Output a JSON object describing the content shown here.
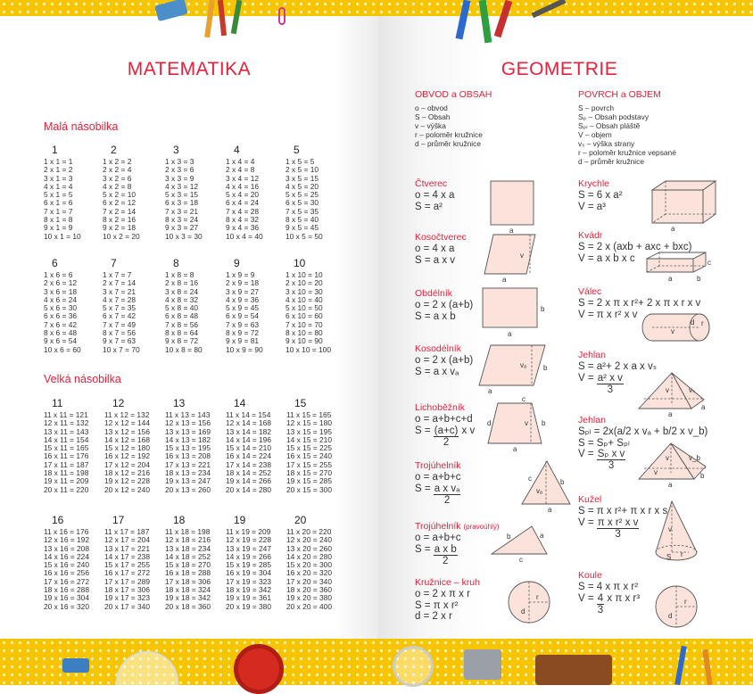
{
  "left": {
    "title": "MATEMATIKA",
    "small_title": "Malá násobilka",
    "big_title": "Velká násobilka",
    "small_tables": [
      {
        "header": "1",
        "rows": [
          "1 x 1 = 1",
          "2 x 1 = 2",
          "3 x 1 = 3",
          "4 x 1 = 4",
          "5 x 1 = 5",
          "6 x 1 = 6",
          "7 x 1 = 7",
          "8 x 1 = 8",
          "9 x 1 = 9",
          "10 x 1 = 10"
        ]
      },
      {
        "header": "2",
        "rows": [
          "1 x 2 = 2",
          "2 x 2 = 4",
          "3 x 2 = 6",
          "4 x 2 = 8",
          "5 x 2 = 10",
          "6 x 2 = 12",
          "7 x 2 = 14",
          "8 x 2 = 16",
          "9 x 2 = 18",
          "10 x 2 = 20"
        ]
      },
      {
        "header": "3",
        "rows": [
          "1 x 3 = 3",
          "2 x 3 = 6",
          "3 x 3 = 9",
          "4 x 3 = 12",
          "5 x 3 = 15",
          "6 x 3 = 18",
          "7 x 3 = 21",
          "8 x 3 = 24",
          "9 x 3 = 27",
          "10 x 3 = 30"
        ]
      },
      {
        "header": "4",
        "rows": [
          "1 x 4 = 4",
          "2 x 4 = 8",
          "3 x 4 = 12",
          "4 x 4 = 16",
          "5 x 4 = 20",
          "6 x 4 = 24",
          "7 x 4 = 28",
          "8 x 4 = 32",
          "9 x 4 = 36",
          "10 x 4 = 40"
        ]
      },
      {
        "header": "5",
        "rows": [
          "1 x 5 = 5",
          "2 x 5 = 10",
          "3 x 5 = 15",
          "4 x 5 = 20",
          "5 x 5 = 25",
          "6 x 5 = 30",
          "7 x 5 = 35",
          "8 x 5 = 40",
          "9 x 5 = 45",
          "10 x 5 = 50"
        ]
      },
      {
        "header": "6",
        "rows": [
          "1 x 6 = 6",
          "2 x 6 = 12",
          "3 x 6 = 18",
          "4 x 6 = 24",
          "5 x 6 = 30",
          "6 x 6 = 36",
          "7 x 6 = 42",
          "8 x 6 = 48",
          "9 x 6 = 54",
          "10 x 6 = 60"
        ]
      },
      {
        "header": "7",
        "rows": [
          "1 x 7 = 7",
          "2 x 7 = 14",
          "3 x 7 = 21",
          "4 x 7 = 28",
          "5 x 7 = 35",
          "6 x 7 = 42",
          "7 x 7 = 49",
          "8 x 7 = 56",
          "9 x 7 = 63",
          "10 x 7 = 70"
        ]
      },
      {
        "header": "8",
        "rows": [
          "1 x 8 = 8",
          "2 x 8 = 16",
          "3 x 8 = 24",
          "4 x 8 = 32",
          "5 x 8 = 40",
          "6 x 8 = 48",
          "7 x 8 = 56",
          "8 x 8 = 64",
          "9 x 8 = 72",
          "10 x 8 = 80"
        ]
      },
      {
        "header": "9",
        "rows": [
          "1 x 9 = 9",
          "2 x 9 = 18",
          "3 x 9 = 27",
          "4 x 9 = 36",
          "5 x 9 = 45",
          "6 x 9 = 54",
          "7 x 9 = 63",
          "8 x 9 = 72",
          "9 x 9 = 81",
          "10 x 9 = 90"
        ]
      },
      {
        "header": "10",
        "rows": [
          "1 x 10 = 10",
          "2 x 10 = 20",
          "3 x 10 = 30",
          "4 x 10 = 40",
          "5 x 10 = 50",
          "6 x 10 = 60",
          "7 x 10 = 70",
          "8 x 10 = 80",
          "9 x 10 = 90",
          "10 x 10 = 100"
        ]
      }
    ],
    "big_tables": [
      {
        "header": "11",
        "rows": [
          "11 x 11 = 121",
          "12 x 11 = 132",
          "13 x 11 = 143",
          "14 x 11 = 154",
          "15 x 11 = 165",
          "16 x 11 = 176",
          "17 x 11 = 187",
          "18 x 11 = 198",
          "19 x 11 = 209",
          "20 x 11 = 220"
        ]
      },
      {
        "header": "12",
        "rows": [
          "11 x 12 = 132",
          "12 x 12 = 144",
          "13 x 12 = 156",
          "14 x 12 = 168",
          "15 x 12 = 180",
          "16 x 12 = 192",
          "17 x 12 = 204",
          "18 x 12 = 216",
          "19 x 12 = 228",
          "20 x 12 = 240"
        ]
      },
      {
        "header": "13",
        "rows": [
          "11 x 13 = 143",
          "12 x 13 = 156",
          "13 x 13 = 169",
          "14 x 13 = 182",
          "15 x 13 = 195",
          "16 x 13 = 208",
          "17 x 13 = 221",
          "18 x 13 = 234",
          "19 x 13 = 247",
          "20 x 13 = 260"
        ]
      },
      {
        "header": "14",
        "rows": [
          "11 x 14 = 154",
          "12 x 14 = 168",
          "13 x 14 = 182",
          "14 x 14 = 196",
          "15 x 14 = 210",
          "16 x 14 = 224",
          "17 x 14 = 238",
          "18 x 14 = 252",
          "19 x 14 = 266",
          "20 x 14 = 280"
        ]
      },
      {
        "header": "15",
        "rows": [
          "11 x 15 = 165",
          "12 x 15 = 180",
          "13 x 15 = 195",
          "14 x 15 = 210",
          "15 x 15 = 225",
          "16 x 15 = 240",
          "17 x 15 = 255",
          "18 x 15 = 270",
          "19 x 15 = 285",
          "20 x 15 = 300"
        ]
      },
      {
        "header": "16",
        "rows": [
          "11 x 16 = 176",
          "12 x 16 = 192",
          "13 x 16 = 208",
          "14 x 16 = 224",
          "15 x 16 = 240",
          "16 x 16 = 256",
          "17 x 16 = 272",
          "18 x 16 = 288",
          "19 x 16 = 304",
          "20 x 16 = 320"
        ]
      },
      {
        "header": "17",
        "rows": [
          "11 x 17 = 187",
          "12 x 17 = 204",
          "13 x 17 = 221",
          "14 x 17 = 238",
          "15 x 17 = 255",
          "16 x 17 = 272",
          "17 x 17 = 289",
          "18 x 17 = 306",
          "19 x 17 = 323",
          "20 x 17 = 340"
        ]
      },
      {
        "header": "18",
        "rows": [
          "11 x 18 = 198",
          "12 x 18 = 216",
          "13 x 18 = 234",
          "14 x 18 = 252",
          "15 x 18 = 270",
          "16 x 18 = 288",
          "17 x 18 = 306",
          "18 x 18 = 324",
          "19 x 18 = 342",
          "20 x 18 = 360"
        ]
      },
      {
        "header": "19",
        "rows": [
          "11 x 19 = 209",
          "12 x 19 = 228",
          "13 x 19 = 247",
          "14 x 19 = 266",
          "15 x 19 = 285",
          "16 x 19 = 304",
          "17 x 19 = 323",
          "18 x 19 = 342",
          "19 x 19 = 361",
          "20 x 19 = 380"
        ]
      },
      {
        "header": "20",
        "rows": [
          "11 x 20 = 220",
          "12 x 20 = 240",
          "13 x 20 = 260",
          "14 x 20 = 280",
          "15 x 20 = 300",
          "16 x 20 = 320",
          "17 x 20 = 340",
          "18 x 20 = 360",
          "19 x 20 = 380",
          "20 x 20 = 400"
        ]
      }
    ]
  },
  "right": {
    "title": "GEOMETRIE",
    "legend_left": {
      "heading": "OBVOD a OBSAH",
      "items": [
        "o  – obvod",
        "S  – Obsah",
        "v  – výška",
        "r   – poloměr kružnice",
        "d  – průměr kružnice"
      ]
    },
    "legend_right": {
      "heading": "POVRCH a OBJEM",
      "items": [
        "S – povrch",
        "Sₚ – Obsah podstavy",
        "Sₚₗ – Obsah pláště",
        "V – objem",
        "vₛ – výška strany",
        "r – poloměr kružnice vepsané",
        "d – průměr kružnice"
      ]
    },
    "shapes_left": [
      {
        "title": "Čtverec",
        "lines": [
          {
            "t": "o = 4 x a"
          },
          {
            "t": "S = a²"
          }
        ],
        "labels": [
          "a"
        ]
      },
      {
        "title": "Kosočtverec",
        "lines": [
          {
            "t": "o = 4 x a"
          },
          {
            "t": "S = a x v"
          }
        ],
        "labels": [
          "v",
          "a"
        ]
      },
      {
        "title": "Obdélník",
        "lines": [
          {
            "t": "o = 2 x (a+b)"
          },
          {
            "t": "S = a x b"
          }
        ],
        "labels": [
          "b",
          "a"
        ]
      },
      {
        "title": "Kosodélník",
        "lines": [
          {
            "t": "o = 2 x (a+b)"
          },
          {
            "t": "S = a x vₐ"
          }
        ],
        "labels": [
          "vₐ",
          "b",
          "a"
        ]
      },
      {
        "title": "Lichoběžník",
        "lines": [
          {
            "t": "o = a+b+c+d"
          },
          {
            "lhs": "S = ",
            "num": "(a+c)",
            "den": "2",
            "after": " x v"
          }
        ],
        "labels": [
          "c",
          "d",
          "v",
          "b",
          "a"
        ]
      },
      {
        "title": "Trojúhelník",
        "lines": [
          {
            "t": "o = a+b+c"
          },
          {
            "lhs": "S = ",
            "num": "a x vₐ",
            "den": "2"
          }
        ],
        "labels": [
          "c",
          "b",
          "vₐ",
          "a"
        ]
      },
      {
        "title": "Trojúhelník",
        "suffix": "(pravoúhlý)",
        "lines": [
          {
            "t": "o = a+b+c"
          },
          {
            "lhs": "S = ",
            "num": "a x b",
            "den": "2"
          }
        ],
        "labels": [
          "b",
          "a",
          "c"
        ]
      },
      {
        "title": "Kružnice – kruh",
        "lines": [
          {
            "t": "o = 2 x π x r"
          },
          {
            "t": "S = π x r²"
          },
          {
            "t": "d = 2 x r"
          }
        ],
        "labels": [
          "r",
          "d"
        ]
      }
    ],
    "shapes_right": [
      {
        "title": "Krychle",
        "lines": [
          {
            "t": "S = 6 x a²"
          },
          {
            "t": "V = a³"
          }
        ],
        "labels": [
          "a"
        ]
      },
      {
        "title": "Kvádr",
        "lines": [
          {
            "t": "S = 2 x (axb + axc + bxc)"
          },
          {
            "t": "V = a x b x c"
          }
        ],
        "labels": [
          "c",
          "a",
          "b"
        ]
      },
      {
        "title": "Válec",
        "lines": [
          {
            "t": "S = 2 x π x r²+ 2 x π x r x v"
          },
          {
            "t": "V = π x r² x v"
          }
        ],
        "labels": [
          "d",
          "r",
          "v"
        ]
      },
      {
        "title": "Jehlan",
        "lines": [
          {
            "t": "S = a²+ 2 x a x vₛ"
          },
          {
            "lhs": "V = ",
            "num": "a² x v",
            "den": "3"
          }
        ],
        "labels": [
          "v",
          "vₛ",
          "a",
          "a"
        ]
      },
      {
        "title": "Jehlan",
        "lines": [
          {
            "t": "Sₚₗ = 2x(a/2 x vₐ + b/2 x v_b)"
          },
          {
            "t": "S = Sₚ+ Sₚₗ"
          },
          {
            "lhs": "V = ",
            "num": "Sₚ x v",
            "den": "3"
          }
        ],
        "labels": [
          "v",
          "v_b",
          "v",
          "b",
          "a"
        ]
      },
      {
        "title": "Kužel",
        "lines": [
          {
            "t": "S = π x r²+ π x r x s"
          },
          {
            "lhs": "V = ",
            "num": "π x r² x v",
            "den": "3"
          }
        ],
        "labels": [
          "v",
          "S",
          "r"
        ]
      },
      {
        "title": "Koule",
        "lines": [
          {
            "t": "S = 4 x π x r²"
          },
          {
            "lhs": "V = ",
            "num": "4",
            "den": "3",
            "after": " x π x r³"
          }
        ],
        "labels": [
          "r",
          "d"
        ]
      }
    ]
  },
  "colors": {
    "accent": "#e8203a",
    "strip": "#f6c400",
    "shape_fill": "#fbe3dc"
  }
}
